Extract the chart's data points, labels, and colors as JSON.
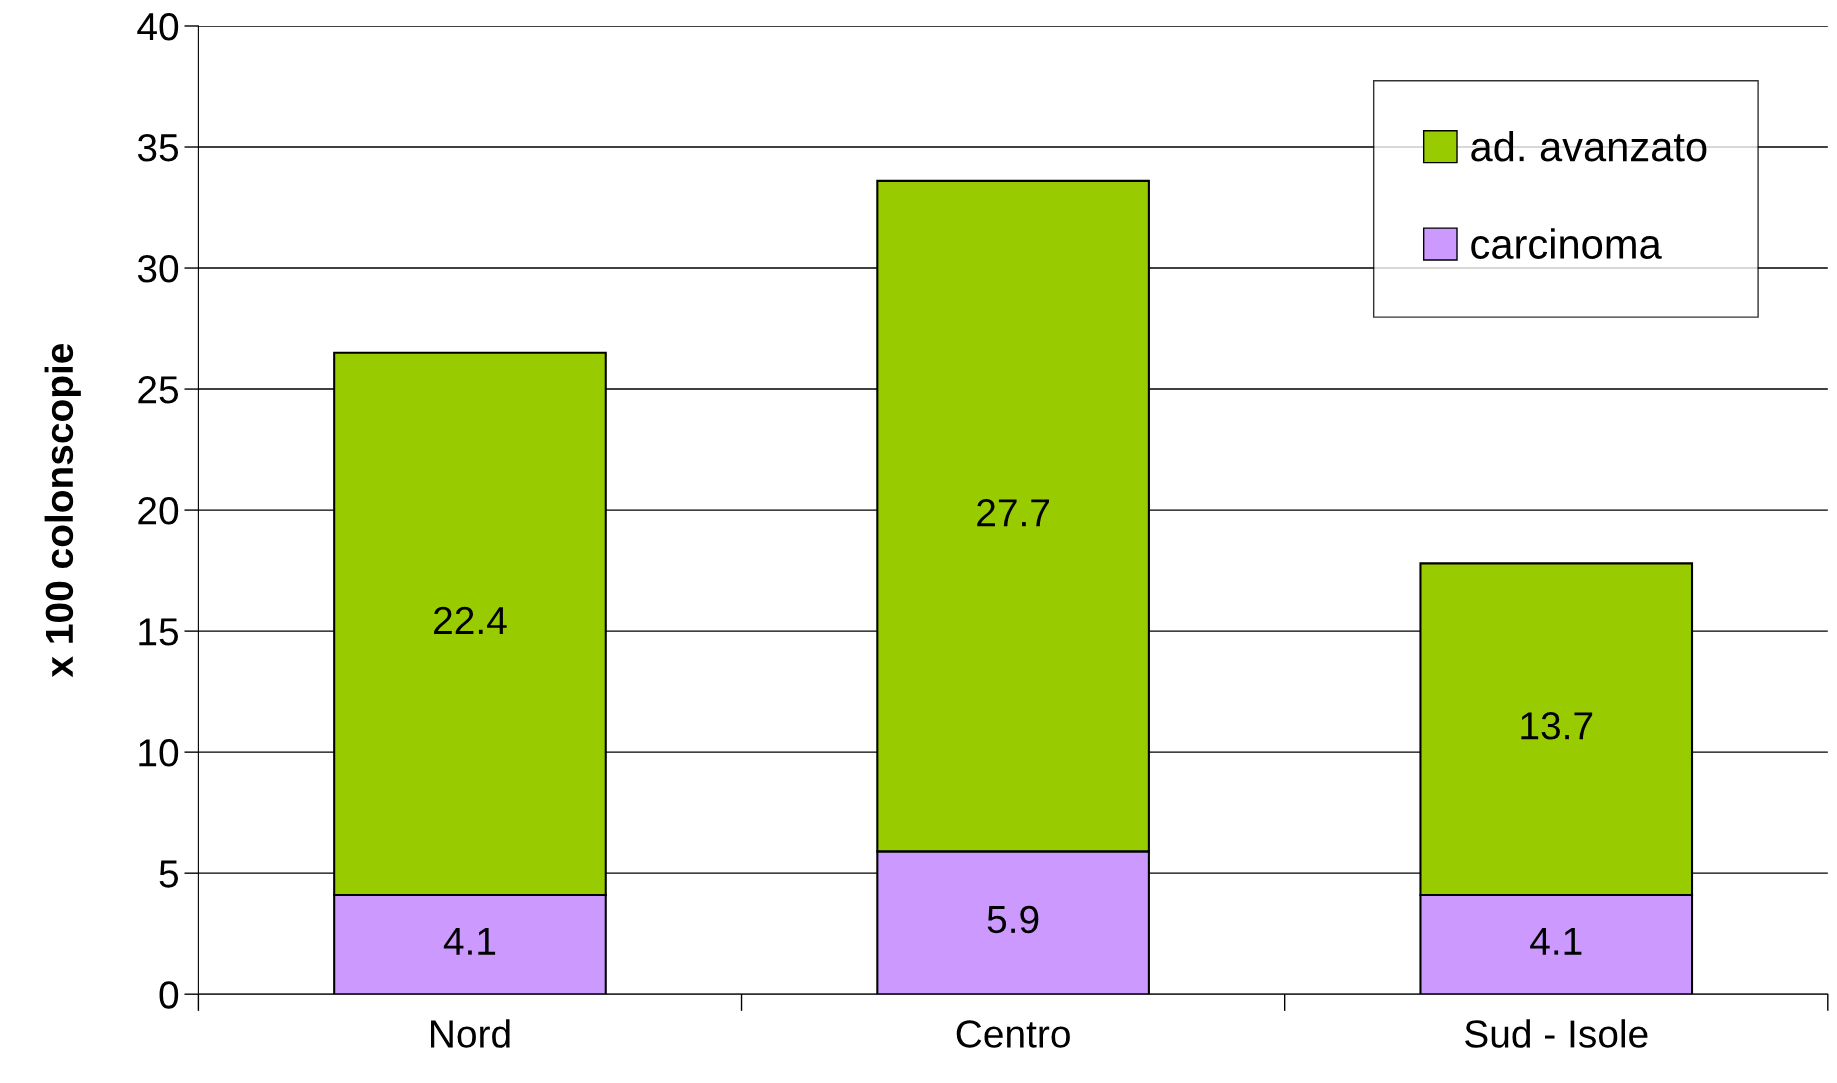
{
  "chart_data": {
    "type": "bar",
    "stacked": true,
    "ylabel": "x 100 colonscopie",
    "categories": [
      "Nord",
      "Centro",
      "Sud - Isole"
    ],
    "series": [
      {
        "name": "carcinoma",
        "color": "#cc99ff",
        "values": [
          4.1,
          5.9,
          4.1
        ]
      },
      {
        "name": "ad. avanzato",
        "color": "#99cc00",
        "values": [
          22.4,
          27.7,
          13.7
        ]
      }
    ],
    "ylim": [
      0,
      40
    ],
    "yticks": [
      0,
      5,
      10,
      15,
      20,
      25,
      30,
      35,
      40
    ],
    "grid": "y",
    "legend": "top right",
    "data_labels": true
  }
}
